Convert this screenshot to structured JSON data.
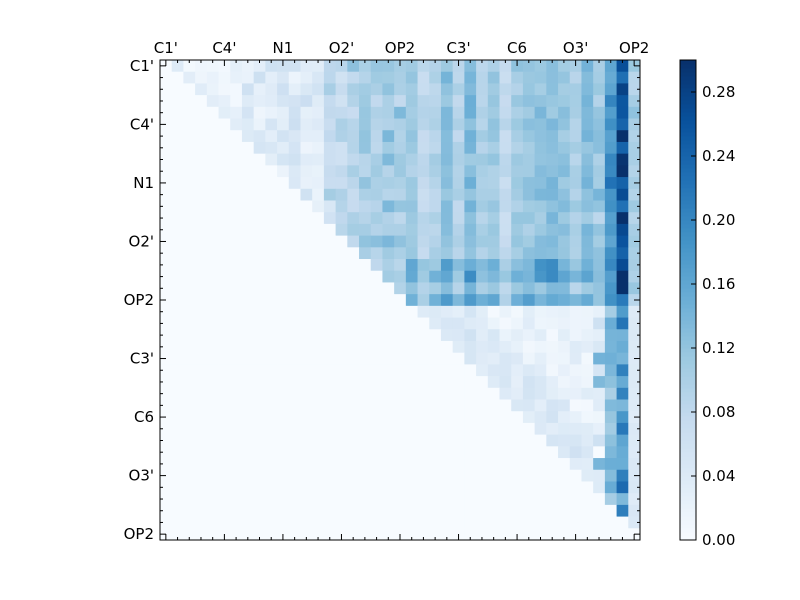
{
  "chart_data": {
    "type": "heatmap",
    "title": "",
    "xlabel": "",
    "ylabel": "",
    "colormap": "Blues",
    "n": 41,
    "x_tick_labels": [
      "C1'",
      "C4'",
      "N1",
      "O2'",
      "OP2",
      "C3'",
      "C6",
      "O3'",
      "OP2"
    ],
    "y_tick_labels": [
      "C1'",
      "C4'",
      "N1",
      "O2'",
      "OP2",
      "C3'",
      "C6",
      "O3'",
      "OP2"
    ],
    "tick_index_step": 5,
    "x_tick_position": "top",
    "colorbar": {
      "range": [
        0.0,
        0.3
      ],
      "ticks": [
        "0.00",
        "0.04",
        "0.08",
        "0.12",
        "0.16",
        "0.20",
        "0.24",
        "0.28"
      ],
      "tick_values": [
        0.0,
        0.04,
        0.08,
        0.12,
        0.16,
        0.2,
        0.24,
        0.28
      ],
      "position": "right"
    },
    "values": "upper-triangular 41x41 matrix; values estimated from colour, 0.00–0.30, generated by script below"
  }
}
